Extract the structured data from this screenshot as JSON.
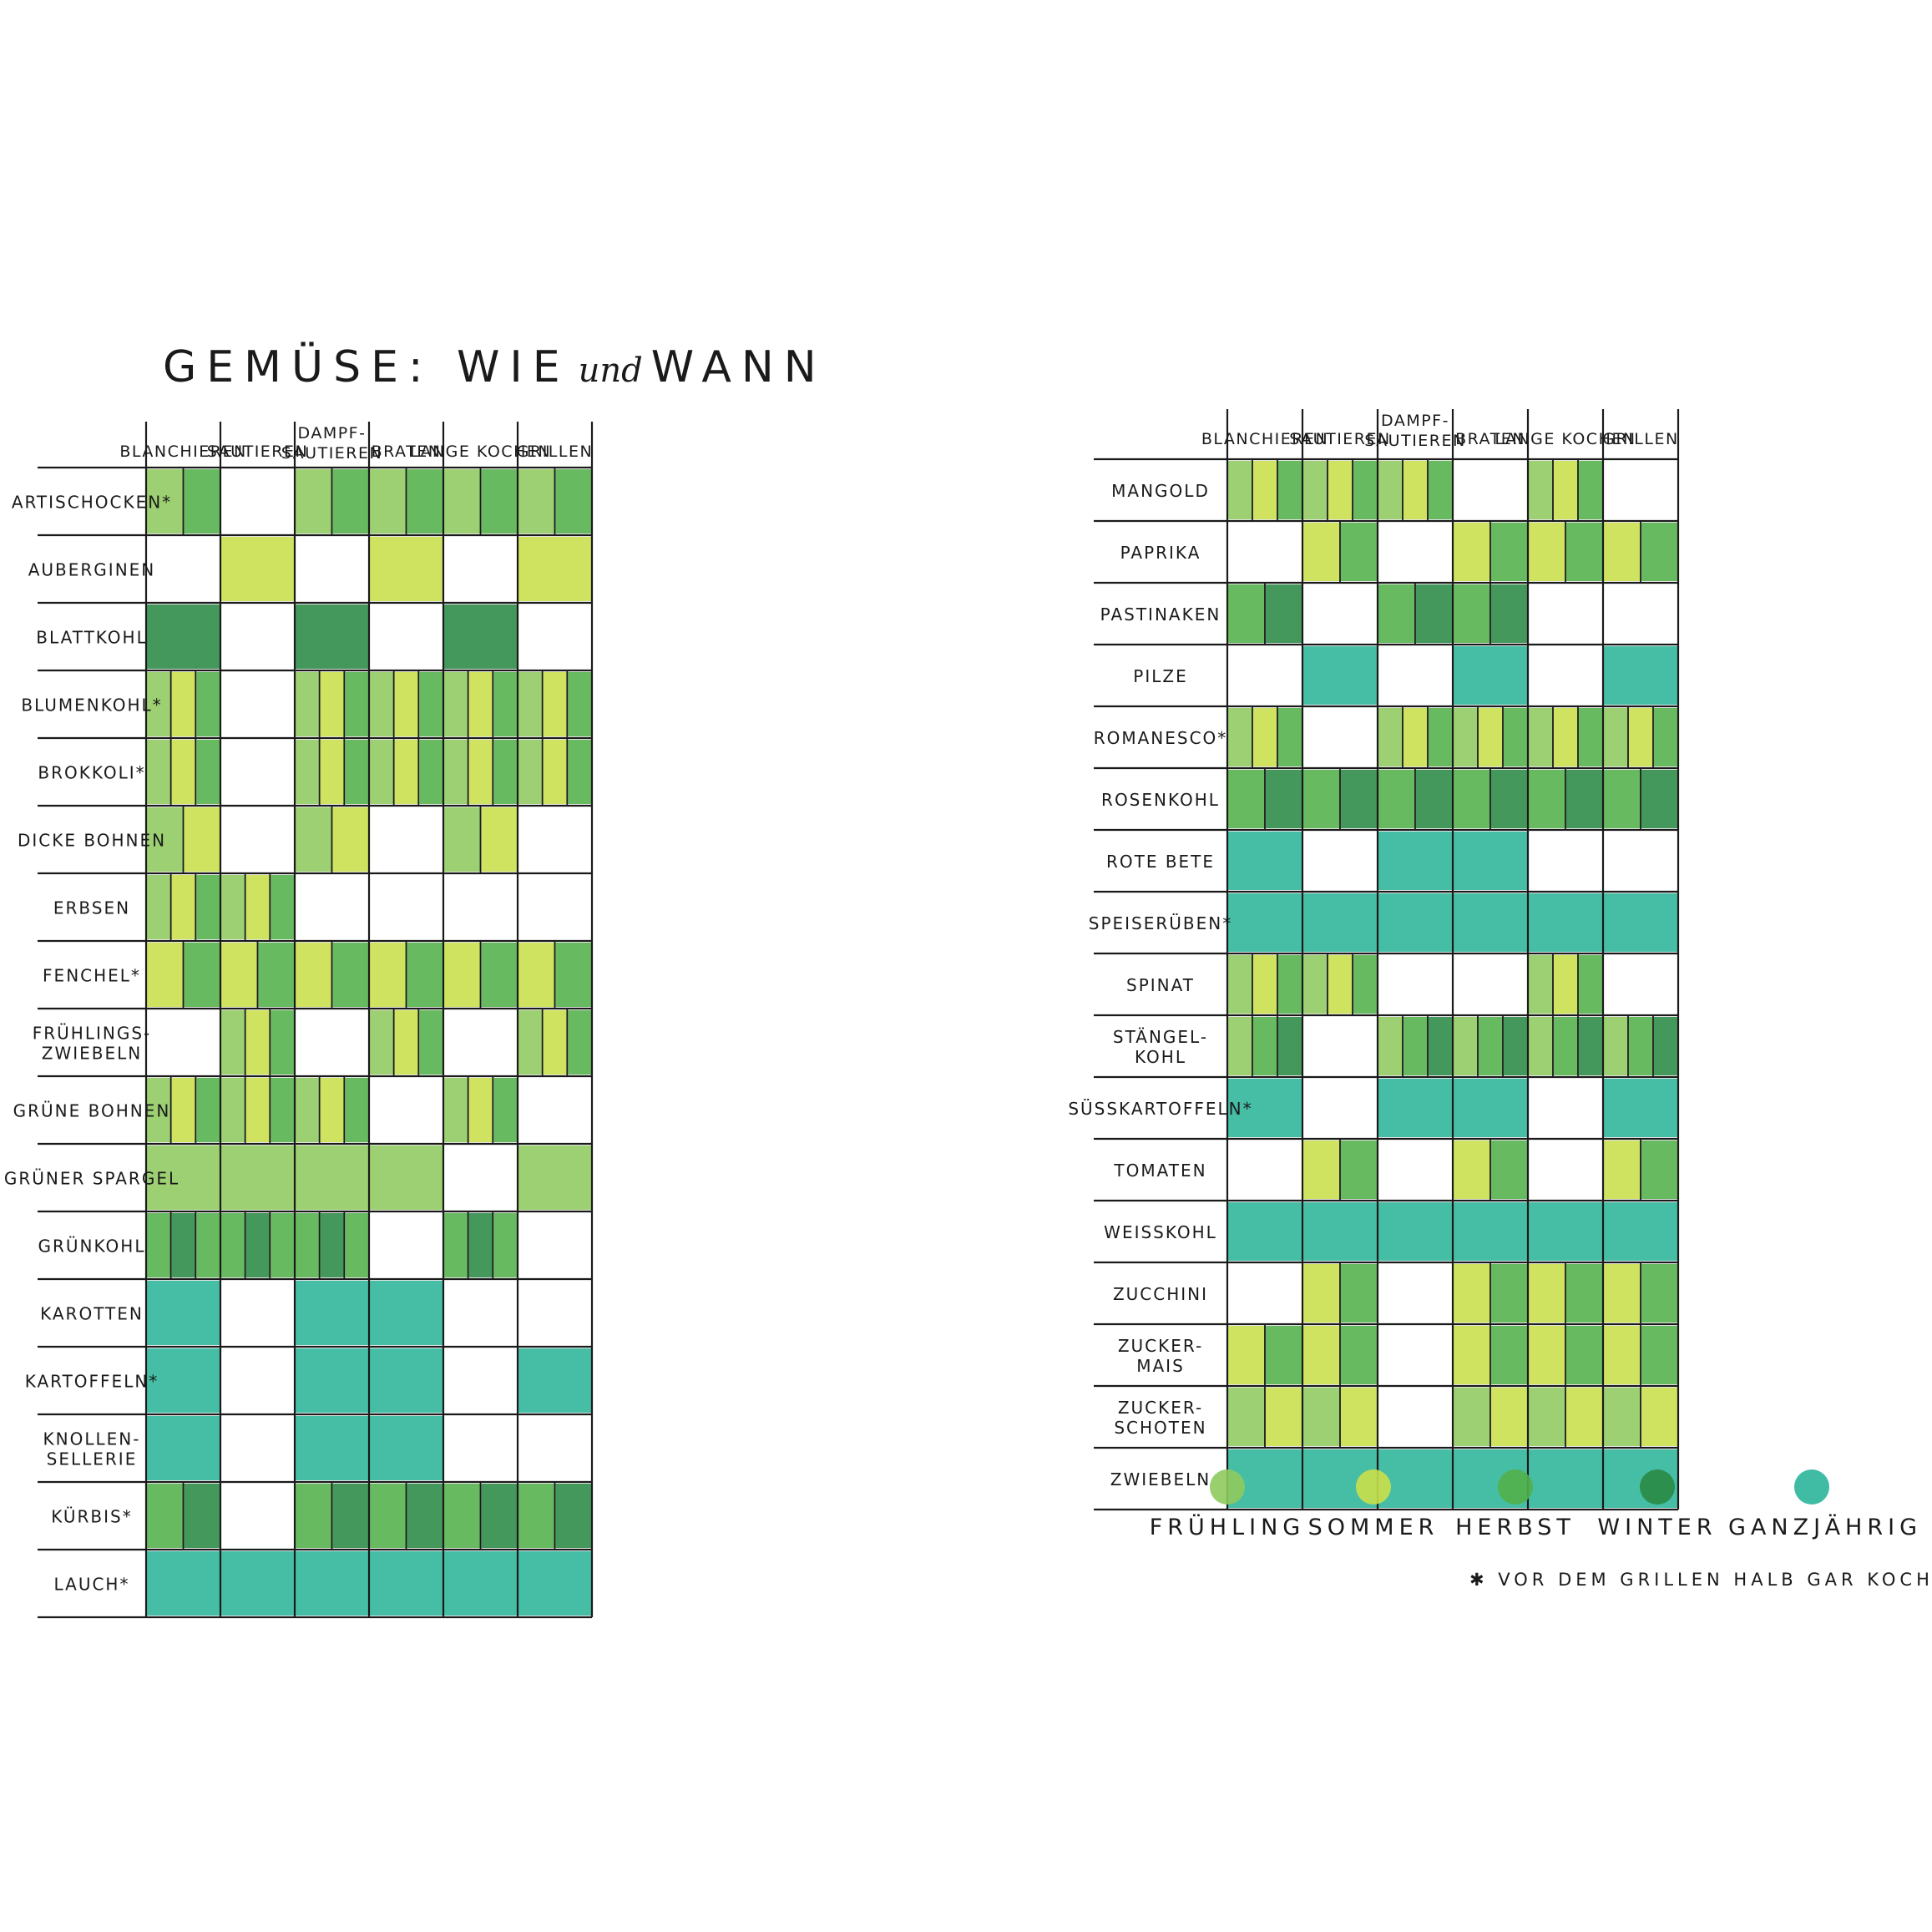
{
  "title": {
    "main_left": "GEMÜSE:",
    "und": "und",
    "main_right": "WIE",
    "when": "WANN"
  },
  "legend": {
    "items": [
      {
        "key": "F",
        "label": "FRÜHLING",
        "color": "#8fca5e"
      },
      {
        "key": "S",
        "label": "SOMMER",
        "color": "#c8df4a"
      },
      {
        "key": "H",
        "label": "HERBST",
        "color": "#52b04a"
      },
      {
        "key": "W",
        "label": "WINTER",
        "color": "#2a8a45"
      },
      {
        "key": "G",
        "label": "GANZJÄHRIG",
        "color": "#2cb59a"
      }
    ],
    "footnote": "✱ VOR DEM GRILLEN HALB GAR KOCHEN"
  },
  "chart_data": [
    {
      "type": "table",
      "title": "GEMÜSE: WIE und WANN",
      "methods": [
        "BLANCHIEREN",
        "SAUTIEREN",
        "DAMPF-SAUTIEREN",
        "BRATEN",
        "LANGE KOCHEN",
        "GRILLEN"
      ],
      "seasons_legend": {
        "F": "FRÜHLING",
        "S": "SOMMER",
        "H": "HERBST",
        "W": "WINTER",
        "G": "GANZJÄHRIG"
      },
      "rows": [
        {
          "name": "ARTISCHOCKEN*",
          "methods": [
            [
              "F",
              "H"
            ],
            [],
            [
              "F",
              "H"
            ],
            [
              "F",
              "H"
            ],
            [
              "F",
              "H"
            ],
            [
              "F",
              "H"
            ]
          ]
        },
        {
          "name": "AUBERGINEN",
          "methods": [
            [],
            [
              "S"
            ],
            [],
            [
              "S"
            ],
            [],
            [
              "S"
            ]
          ]
        },
        {
          "name": "BLATTKOHL",
          "methods": [
            [
              "W"
            ],
            [],
            [
              "W"
            ],
            [],
            [
              "W"
            ],
            []
          ]
        },
        {
          "name": "BLUMENKOHL*",
          "methods": [
            [
              "F",
              "S",
              "H"
            ],
            [],
            [
              "F",
              "S",
              "H"
            ],
            [
              "F",
              "S",
              "H"
            ],
            [
              "F",
              "S",
              "H"
            ],
            [
              "F",
              "S",
              "H"
            ]
          ]
        },
        {
          "name": "BROKKOLI*",
          "methods": [
            [
              "F",
              "S",
              "H"
            ],
            [],
            [
              "F",
              "S",
              "H"
            ],
            [
              "F",
              "S",
              "H"
            ],
            [
              "F",
              "S",
              "H"
            ],
            [
              "F",
              "S",
              "H"
            ]
          ]
        },
        {
          "name": "DICKE BOHNEN",
          "methods": [
            [
              "F",
              "S"
            ],
            [],
            [
              "F",
              "S"
            ],
            [],
            [
              "F",
              "S"
            ],
            []
          ]
        },
        {
          "name": "ERBSEN",
          "methods": [
            [
              "F",
              "S",
              "H"
            ],
            [
              "F",
              "S",
              "H"
            ],
            [],
            [],
            [],
            []
          ]
        },
        {
          "name": "FENCHEL*",
          "methods": [
            [
              "S",
              "H"
            ],
            [
              "S",
              "H"
            ],
            [
              "S",
              "H"
            ],
            [
              "S",
              "H"
            ],
            [
              "S",
              "H"
            ],
            [
              "S",
              "H"
            ]
          ]
        },
        {
          "name": "FRÜHLINGS-ZWIEBELN",
          "methods": [
            [],
            [
              "F",
              "S",
              "H"
            ],
            [],
            [
              "F",
              "S",
              "H"
            ],
            [],
            [
              "F",
              "S",
              "H"
            ]
          ]
        },
        {
          "name": "GRÜNE BOHNEN",
          "methods": [
            [
              "F",
              "S",
              "H"
            ],
            [
              "F",
              "S",
              "H"
            ],
            [
              "F",
              "S",
              "H"
            ],
            [],
            [
              "F",
              "S",
              "H"
            ],
            []
          ]
        },
        {
          "name": "GRÜNER SPARGEL",
          "methods": [
            [
              "F"
            ],
            [
              "F"
            ],
            [
              "F"
            ],
            [
              "F"
            ],
            [],
            [
              "F"
            ]
          ]
        },
        {
          "name": "GRÜNKOHL",
          "methods": [
            [
              "H",
              "W",
              "H"
            ],
            [
              "H",
              "W",
              "H"
            ],
            [
              "H",
              "W",
              "H"
            ],
            [],
            [
              "H",
              "W",
              "H"
            ],
            []
          ]
        },
        {
          "name": "KAROTTEN",
          "methods": [
            [
              "G"
            ],
            [],
            [
              "G"
            ],
            [
              "G"
            ],
            [],
            []
          ]
        },
        {
          "name": "KARTOFFELN*",
          "methods": [
            [
              "G"
            ],
            [],
            [
              "G"
            ],
            [
              "G"
            ],
            [],
            [
              "G"
            ]
          ]
        },
        {
          "name": "KNOLLEN-SELLERIE",
          "methods": [
            [
              "G"
            ],
            [],
            [
              "G"
            ],
            [
              "G"
            ],
            [],
            []
          ]
        },
        {
          "name": "KÜRBIS*",
          "methods": [
            [
              "H",
              "W"
            ],
            [],
            [
              "H",
              "W"
            ],
            [
              "H",
              "W"
            ],
            [
              "H",
              "W"
            ],
            [
              "H",
              "W"
            ]
          ]
        },
        {
          "name": "LAUCH*",
          "methods": [
            [
              "G"
            ],
            [
              "G"
            ],
            [
              "G"
            ],
            [
              "G"
            ],
            [
              "G"
            ],
            [
              "G"
            ]
          ]
        }
      ]
    },
    {
      "type": "table",
      "methods": [
        "BLANCHIEREN",
        "SAUTIEREN",
        "DAMPF-SAUTIEREN",
        "BRATEN",
        "LANGE KOCHEN",
        "GRILLEN"
      ],
      "rows": [
        {
          "name": "MANGOLD",
          "methods": [
            [
              "F",
              "S",
              "H"
            ],
            [
              "F",
              "S",
              "H"
            ],
            [
              "F",
              "S",
              "H"
            ],
            [],
            [
              "F",
              "S",
              "H"
            ],
            []
          ]
        },
        {
          "name": "PAPRIKA",
          "methods": [
            [],
            [
              "S",
              "H"
            ],
            [],
            [
              "S",
              "H"
            ],
            [
              "S",
              "H"
            ],
            [
              "S",
              "H"
            ]
          ]
        },
        {
          "name": "PASTINAKEN",
          "methods": [
            [
              "H",
              "W"
            ],
            [],
            [
              "H",
              "W"
            ],
            [
              "H",
              "W"
            ],
            [],
            []
          ]
        },
        {
          "name": "PILZE",
          "methods": [
            [],
            [
              "G"
            ],
            [],
            [
              "G"
            ],
            [],
            [
              "G"
            ]
          ]
        },
        {
          "name": "ROMANESCO*",
          "methods": [
            [
              "F",
              "S",
              "H"
            ],
            [],
            [
              "F",
              "S",
              "H"
            ],
            [
              "F",
              "S",
              "H"
            ],
            [
              "F",
              "S",
              "H"
            ],
            [
              "F",
              "S",
              "H"
            ]
          ]
        },
        {
          "name": "ROSENKOHL",
          "methods": [
            [
              "H",
              "W"
            ],
            [
              "H",
              "W"
            ],
            [
              "H",
              "W"
            ],
            [
              "H",
              "W"
            ],
            [
              "H",
              "W"
            ],
            [
              "H",
              "W"
            ]
          ]
        },
        {
          "name": "ROTE BETE",
          "methods": [
            [
              "G"
            ],
            [],
            [
              "G"
            ],
            [
              "G"
            ],
            [],
            []
          ]
        },
        {
          "name": "SPEISERÜBEN*",
          "methods": [
            [
              "G"
            ],
            [
              "G"
            ],
            [
              "G"
            ],
            [
              "G"
            ],
            [
              "G"
            ],
            [
              "G"
            ]
          ]
        },
        {
          "name": "SPINAT",
          "methods": [
            [
              "F",
              "S",
              "H"
            ],
            [
              "F",
              "S",
              "H"
            ],
            [],
            [],
            [
              "F",
              "S",
              "H"
            ],
            []
          ]
        },
        {
          "name": "STÄNGEL-KOHL",
          "methods": [
            [
              "F",
              "H",
              "W"
            ],
            [],
            [
              "F",
              "H",
              "W"
            ],
            [
              "F",
              "H",
              "W"
            ],
            [
              "F",
              "H",
              "W"
            ],
            [
              "F",
              "H",
              "W"
            ]
          ]
        },
        {
          "name": "SÜSSKARTOFFELN*",
          "methods": [
            [
              "G"
            ],
            [],
            [
              "G"
            ],
            [
              "G"
            ],
            [],
            [
              "G"
            ]
          ]
        },
        {
          "name": "TOMATEN",
          "methods": [
            [],
            [
              "S",
              "H"
            ],
            [],
            [
              "S",
              "H"
            ],
            [],
            [
              "S",
              "H"
            ]
          ]
        },
        {
          "name": "WEISSKOHL",
          "methods": [
            [
              "G"
            ],
            [
              "G"
            ],
            [
              "G"
            ],
            [
              "G"
            ],
            [
              "G"
            ],
            [
              "G"
            ]
          ]
        },
        {
          "name": "ZUCCHINI",
          "methods": [
            [],
            [
              "S",
              "H"
            ],
            [],
            [
              "S",
              "H"
            ],
            [
              "S",
              "H"
            ],
            [
              "S",
              "H"
            ]
          ]
        },
        {
          "name": "ZUCKER-MAIS",
          "methods": [
            [
              "S",
              "H"
            ],
            [
              "S",
              "H"
            ],
            [],
            [
              "S",
              "H"
            ],
            [
              "S",
              "H"
            ],
            [
              "S",
              "H"
            ]
          ]
        },
        {
          "name": "ZUCKER-SCHOTEN",
          "methods": [
            [
              "F",
              "S"
            ],
            [
              "F",
              "S"
            ],
            [],
            [
              "F",
              "S"
            ],
            [
              "F",
              "S"
            ],
            [
              "F",
              "S"
            ]
          ]
        },
        {
          "name": "ZWIEBELN",
          "methods": [
            [
              "G"
            ],
            [
              "G"
            ],
            [
              "G"
            ],
            [
              "G"
            ],
            [
              "G"
            ],
            [
              "G"
            ]
          ]
        }
      ]
    }
  ]
}
